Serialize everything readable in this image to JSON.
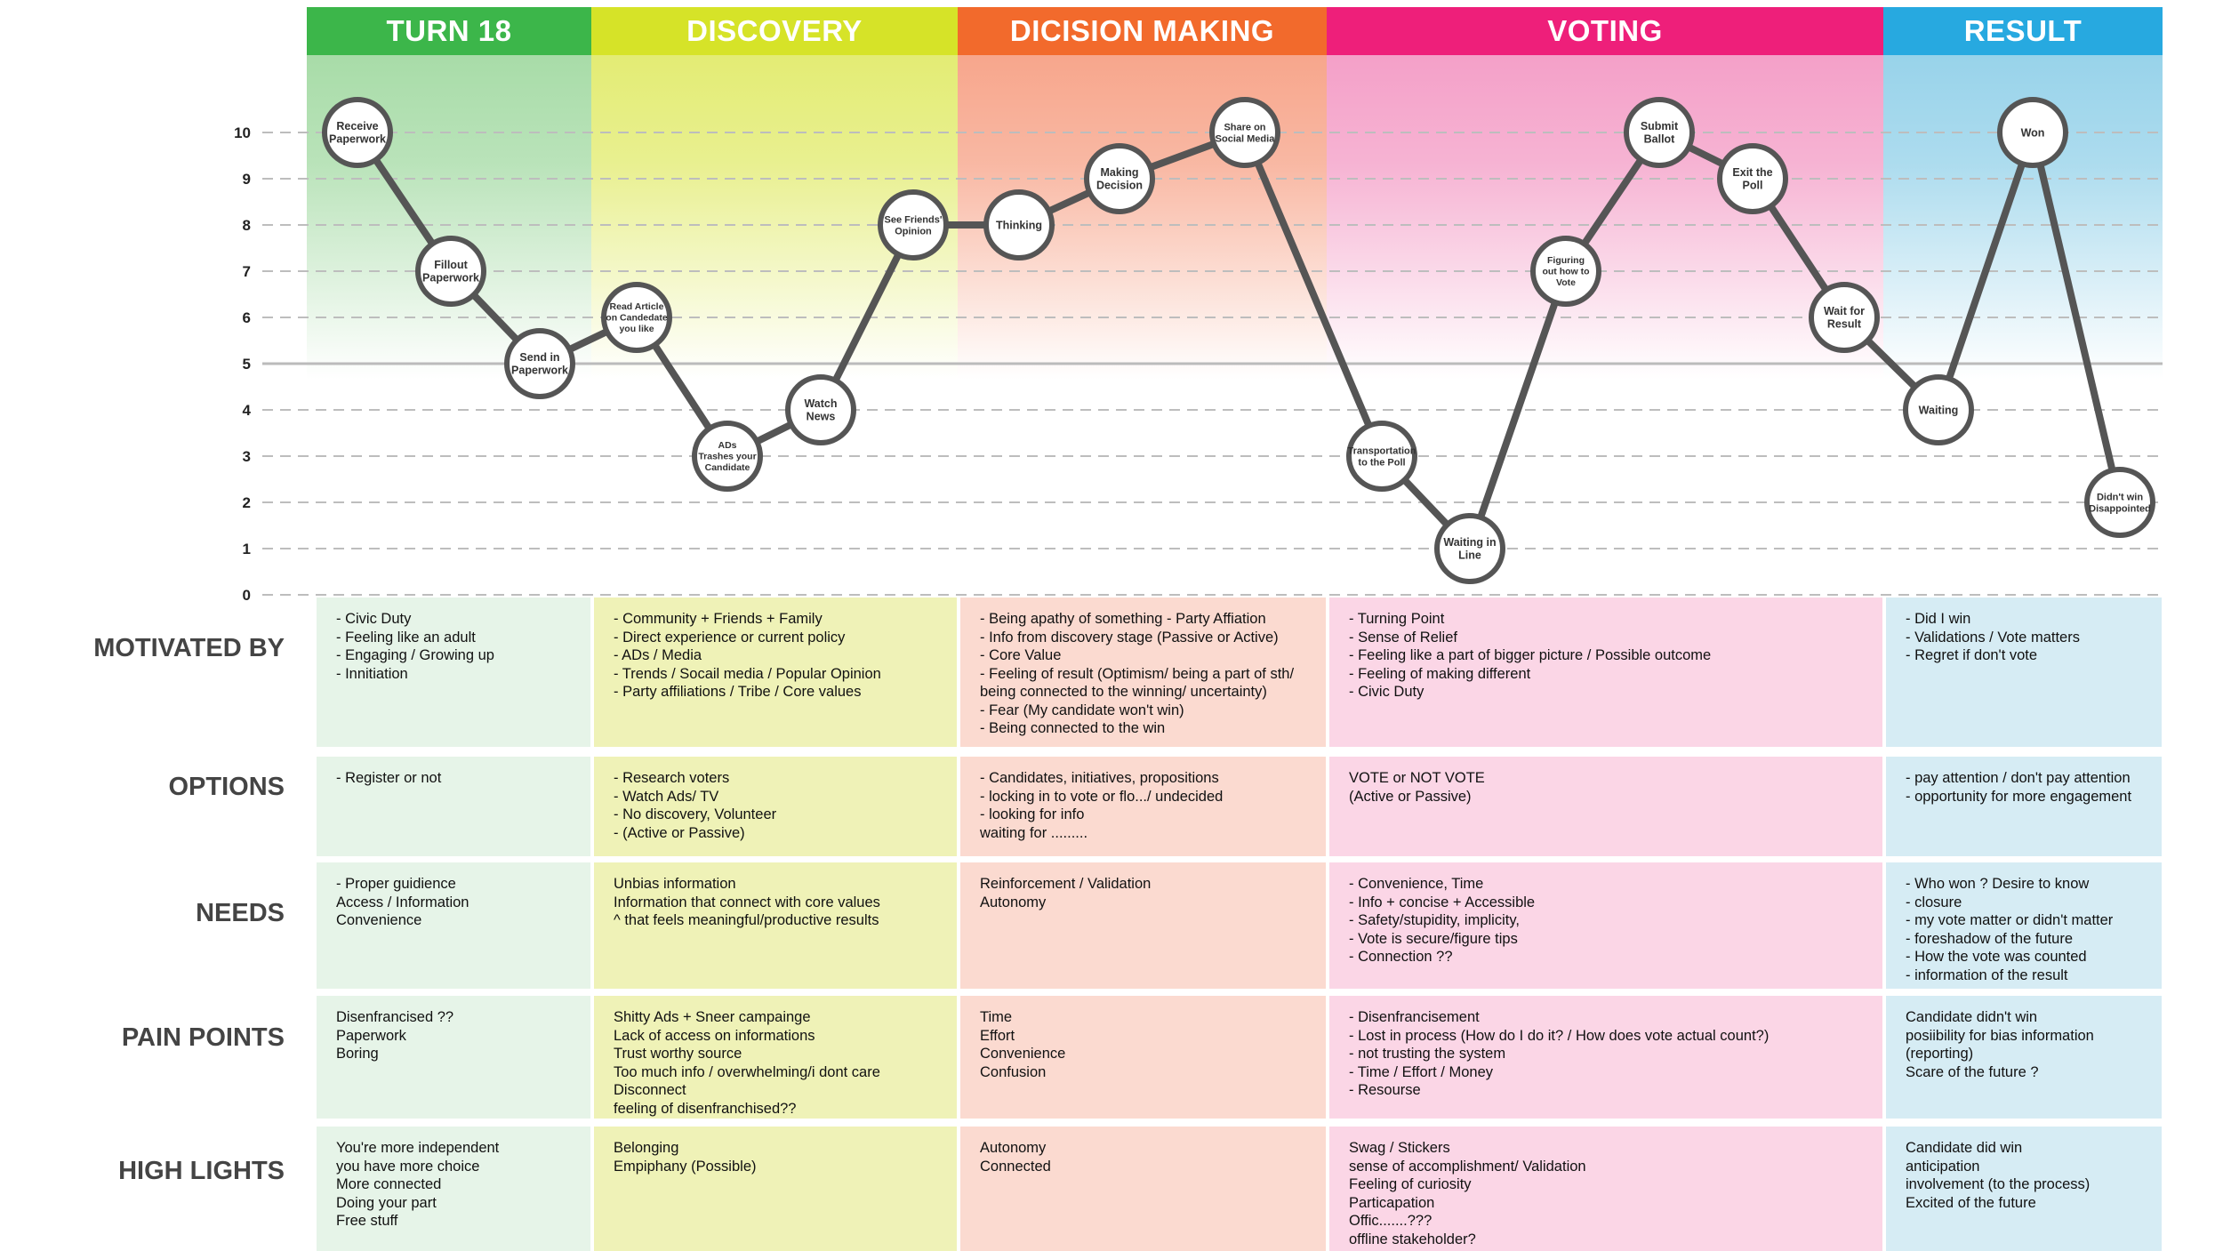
{
  "phases": [
    {
      "name": "TURN 18",
      "color": "#3cb64a",
      "band_top": "#a8dca8",
      "cell_bg": "#e6f4e8"
    },
    {
      "name": "DISCOVERY",
      "color": "#d6e328",
      "band_top": "#e3ec74",
      "cell_bg": "#eff2b7"
    },
    {
      "name": "DICISION MAKING",
      "color": "#f26a2c",
      "band_top": "#f7a68c",
      "cell_bg": "#fbdad0"
    },
    {
      "name": "VOTING",
      "color": "#ee1f7a",
      "band_top": "#f4a0c8",
      "cell_bg": "#fbd6e6"
    },
    {
      "name": "RESULT",
      "color": "#27a9e0",
      "band_top": "#98d3ea",
      "cell_bg": "#d6ecf4"
    }
  ],
  "chart_data": {
    "type": "line",
    "y_ticks": [
      "0",
      "1",
      "2",
      "3",
      "4",
      "5",
      "6",
      "7",
      "8",
      "9",
      "10"
    ],
    "ylim": [
      0,
      10
    ],
    "points": [
      {
        "label": "Receive\nPaperwork",
        "phase": 0,
        "y": 10
      },
      {
        "label": "Fillout\nPaperwork",
        "phase": 0,
        "y": 7
      },
      {
        "label": "Send in\nPaperwork",
        "phase": 0,
        "y": 5
      },
      {
        "label": "Read Article\non Candedate\nyou like",
        "phase": 1,
        "y": 6
      },
      {
        "label": "ADs\nTrashes your\nCandidate",
        "phase": 1,
        "y": 3
      },
      {
        "label": "Watch\nNews",
        "phase": 1,
        "y": 4
      },
      {
        "label": "See Friends'\nOpinion",
        "phase": 1,
        "y": 8
      },
      {
        "label": "Thinking",
        "phase": 2,
        "y": 8
      },
      {
        "label": "Making\nDecision",
        "phase": 2,
        "y": 9
      },
      {
        "label": "Share on\nSocial Media",
        "phase": 2,
        "y": 10
      },
      {
        "label": "Transportation\nto the Poll",
        "phase": 3,
        "y": 3
      },
      {
        "label": "Waiting in\nLine",
        "phase": 3,
        "y": 1
      },
      {
        "label": "Figuring\nout how to\nVote",
        "phase": 3,
        "y": 7
      },
      {
        "label": "Submit\nBallot",
        "phase": 3,
        "y": 10
      },
      {
        "label": "Exit the\nPoll",
        "phase": 3,
        "y": 9
      },
      {
        "label": "Wait for\nResult",
        "phase": 3,
        "y": 6
      },
      {
        "label": "Waiting",
        "phase": 4,
        "y": 4
      },
      {
        "label": "Won",
        "phase": 4,
        "y": 10
      },
      {
        "label": "Didn't win\nDisappointed",
        "phase": 4,
        "y": 2
      }
    ]
  },
  "rows": [
    {
      "label": "MOTIVATED BY",
      "cells": [
        "- Civic Duty\n- Feeling like an adult\n- Engaging / Growing up\n- Innitiation",
        "- Community + Friends + Family\n- Direct experience or current policy\n- ADs / Media\n- Trends / Socail media / Popular Opinion\n- Party affiliations / Tribe / Core values",
        "- Being apathy of something - Party Affiation\n- Info from discovery stage (Passive or Active)\n- Core Value\n- Feeling of result (Optimism/ being a part of sth/\nbeing connected to the winning/ uncertainty)\n- Fear (My candidate won't win)\n- Being connected to the win",
        "- Turning Point\n- Sense of Relief\n- Feeling like a part of bigger picture / Possible outcome\n- Feeling of making different\n- Civic Duty",
        "- Did I win\n- Validations / Vote matters\n- Regret if don't vote"
      ]
    },
    {
      "label": "OPTIONS",
      "cells": [
        "- Register or not",
        "- Research voters\n- Watch Ads/ TV\n- No discovery, Volunteer\n- (Active or Passive)",
        "- Candidates, initiatives, propositions\n- locking in to vote or flo.../ undecided\n- looking for info\nwaiting for .........",
        "VOTE or NOT VOTE\n(Active or Passive)",
        "- pay attention / don't pay attention\n- opportunity for more engagement"
      ]
    },
    {
      "label": "NEEDS",
      "cells": [
        "- Proper guidience\nAccess / Information\nConvenience",
        "Unbias information\nInformation that connect with core values\n^ that feels meaningful/productive results",
        "Reinforcement / Validation\nAutonomy",
        "- Convenience, Time\n- Info + concise + Accessible\n- Safety/stupidity, implicity,\n- Vote is secure/figure tips\n- Connection ??",
        "- Who won ?  Desire to know\n- closure\n- my vote matter or didn't matter\n- foreshadow of the future\n- How the vote was counted\n- information of the result"
      ]
    },
    {
      "label": "PAIN POINTS",
      "cells": [
        "Disenfrancised ??\nPaperwork\nBoring",
        "Shitty Ads + Sneer campainge\nLack of access on informations\nTrust worthy source\nToo much info / overwhelming/i dont care\nDisconnect\nfeeling of disenfranchised??",
        "Time\nEffort\nConvenience\nConfusion",
        "- Disenfrancisement\n- Lost in process (How do I do it? / How does vote actual count?)\n- not trusting the system\n- Time / Effort / Money\n- Resourse",
        "Candidate didn't win\nposiibility for bias information\n(reporting)\nScare of the future ?"
      ]
    },
    {
      "label": "HIGH LIGHTS",
      "cells": [
        "You're more independent\nyou have more choice\nMore connected\nDoing your part\nFree stuff",
        "Belonging\nEmpiphany (Possible)",
        "Autonomy\nConnected",
        "Swag / Stickers\nsense of accomplishment/ Validation\nFeeling of curiosity\nParticapation\nOffic.......???\noffline stakeholder?",
        "Candidate did win\nanticipation\ninvolvement (to the process)\nExcited of the future"
      ]
    }
  ]
}
